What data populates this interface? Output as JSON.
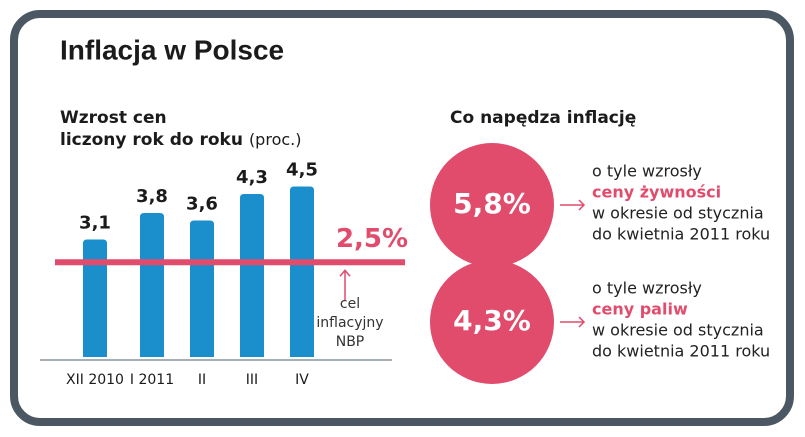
{
  "chart_data": {
    "type": "bar",
    "title": "Inflacja w Polsce",
    "subtitle": [
      "Wzrost cen",
      "liczony rok do roku",
      "(proc.)"
    ],
    "categories": [
      "XII 2010",
      "I 2011",
      "II",
      "III",
      "IV"
    ],
    "values": [
      3.1,
      3.8,
      3.6,
      4.3,
      4.5
    ],
    "value_labels": [
      "3,1",
      "3,8",
      "3,6",
      "4,3",
      "4,5"
    ],
    "color": "#1a8fcb",
    "ylim": [
      0,
      5
    ],
    "target": {
      "value": 2.5,
      "label": "2,5%",
      "note": [
        "cel",
        "inflacyjny",
        "NBP"
      ],
      "color": "#e14b6c"
    }
  },
  "drivers": {
    "title": "Co napędza inflację",
    "items": [
      {
        "label": "5,8%",
        "lines": [
          "o tyle wzrosły",
          "ceny żywności",
          "w okresie od stycznia",
          "do kwietnia 2011 roku"
        ],
        "highlight": 1
      },
      {
        "label": "4,3%",
        "lines": [
          "o tyle wzrosły",
          "ceny paliw",
          "w okresie od stycznia",
          "do kwietnia 2011 roku"
        ],
        "highlight": 1
      }
    ]
  }
}
